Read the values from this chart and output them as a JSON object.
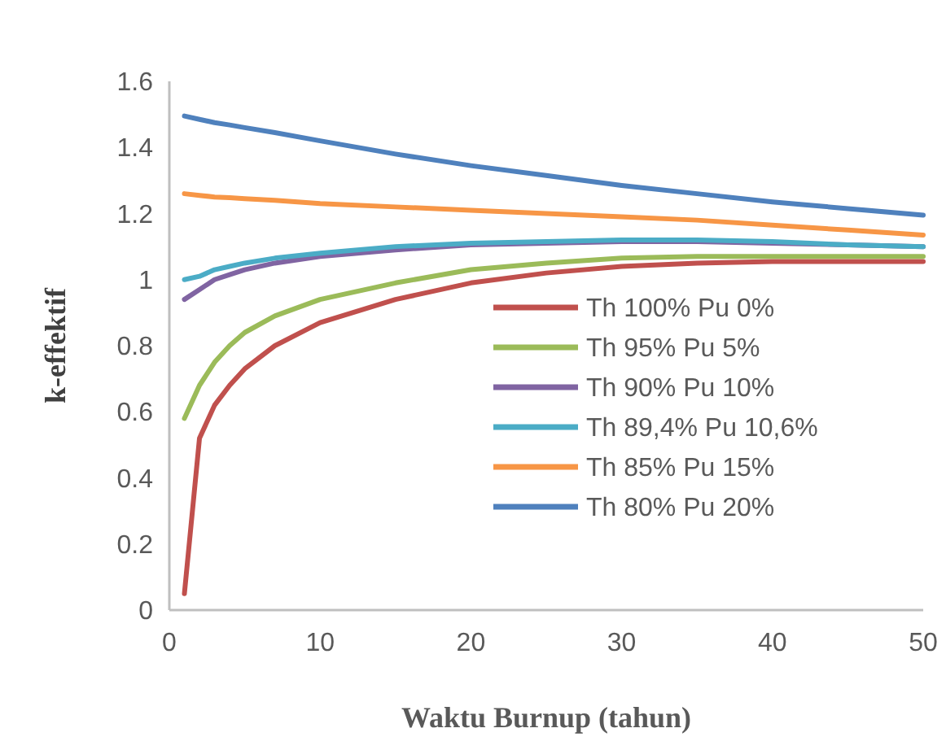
{
  "chart_data": {
    "type": "line",
    "xlabel": "Waktu Burnup (tahun)",
    "ylabel": "k-effektif",
    "xlim": [
      0,
      50
    ],
    "xticks": [
      0,
      10,
      20,
      30,
      40,
      50
    ],
    "ylim": [
      0,
      1.6
    ],
    "yticks": [
      0,
      0.2,
      0.4,
      0.6,
      0.8,
      1,
      1.2,
      1.4,
      1.6
    ],
    "grid": false,
    "legend": "bottom right",
    "marker": "none",
    "line_style": "solid",
    "x": [
      1,
      2,
      3,
      4,
      5,
      7,
      10,
      15,
      20,
      25,
      30,
      35,
      40,
      45,
      50
    ],
    "series": [
      {
        "name": "Th 100% Pu 0%",
        "color": "#c0504d",
        "values": [
          0.05,
          0.52,
          0.62,
          0.68,
          0.73,
          0.8,
          0.87,
          0.94,
          0.99,
          1.02,
          1.04,
          1.05,
          1.055,
          1.055,
          1.055
        ]
      },
      {
        "name": "Th 95% Pu 5%",
        "color": "#9bbb59",
        "values": [
          0.58,
          0.68,
          0.75,
          0.8,
          0.84,
          0.89,
          0.94,
          0.99,
          1.03,
          1.05,
          1.065,
          1.07,
          1.07,
          1.07,
          1.07
        ]
      },
      {
        "name": "Th 90% Pu 10%",
        "color": "#8064a2",
        "values": [
          0.94,
          0.97,
          1.0,
          1.015,
          1.03,
          1.05,
          1.07,
          1.09,
          1.105,
          1.11,
          1.115,
          1.115,
          1.11,
          1.105,
          1.1
        ]
      },
      {
        "name": "Th 89,4% Pu 10,6%",
        "color": "#4bacc6",
        "values": [
          1.0,
          1.01,
          1.03,
          1.04,
          1.05,
          1.065,
          1.08,
          1.1,
          1.11,
          1.115,
          1.12,
          1.12,
          1.115,
          1.105,
          1.1
        ]
      },
      {
        "name": "Th 85% Pu 15%",
        "color": "#f79646",
        "values": [
          1.26,
          1.255,
          1.25,
          1.248,
          1.245,
          1.24,
          1.23,
          1.22,
          1.21,
          1.2,
          1.19,
          1.18,
          1.165,
          1.15,
          1.135
        ]
      },
      {
        "name": "Th 80% Pu 20%",
        "color": "#4f81bd",
        "values": [
          1.495,
          1.485,
          1.475,
          1.468,
          1.46,
          1.445,
          1.42,
          1.38,
          1.345,
          1.315,
          1.285,
          1.26,
          1.235,
          1.215,
          1.195
        ]
      }
    ]
  }
}
